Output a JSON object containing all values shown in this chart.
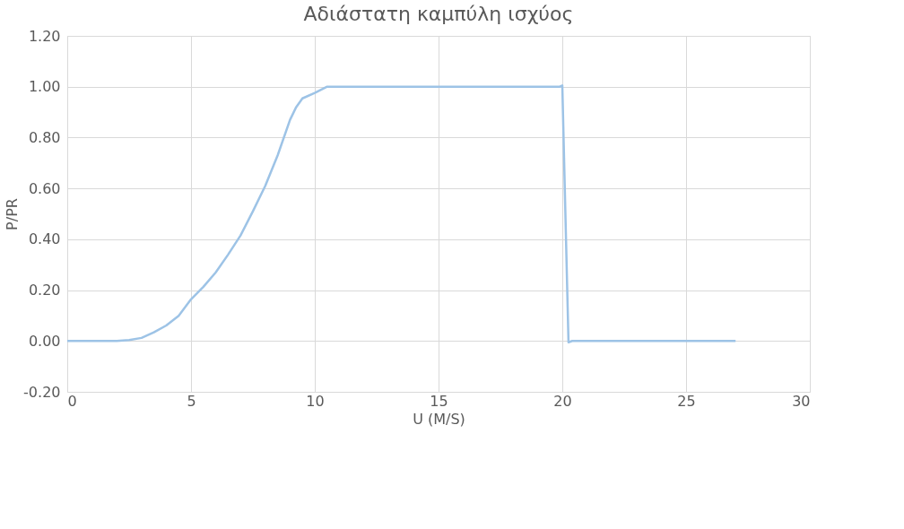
{
  "chart_data": {
    "type": "line",
    "title": "Αδιάστατη καμπύλη ισχύος",
    "xlabel": "U (M/S)",
    "ylabel": "P/PR",
    "x": [
      0,
      1,
      2,
      2.5,
      3,
      3.5,
      4,
      4.5,
      5,
      5.5,
      6,
      6.5,
      7,
      7.5,
      8,
      8.5,
      9,
      9.25,
      9.5,
      10,
      10.5,
      19.9,
      20,
      20.25,
      20.4,
      27
    ],
    "series": [
      {
        "color": "#9dc3e6",
        "values": [
          0,
          0,
          0,
          0.004,
          0.012,
          0.034,
          0.061,
          0.099,
          0.164,
          0.213,
          0.27,
          0.34,
          0.415,
          0.51,
          0.61,
          0.73,
          0.87,
          0.92,
          0.954,
          0.976,
          1.0,
          1.0,
          1.005,
          -0.005,
          0,
          0
        ]
      }
    ],
    "xlim": [
      0,
      30
    ],
    "xticks": [
      0,
      5,
      10,
      15,
      20,
      25,
      30
    ],
    "ylim": [
      -0.2,
      1.2
    ],
    "yticks": [
      {
        "value": -0.2,
        "label": "-0.20"
      },
      {
        "value": 0,
        "label": "0.00"
      },
      {
        "value": 0.2,
        "label": "0.20"
      },
      {
        "value": 0.4,
        "label": "0.40"
      },
      {
        "value": 0.6,
        "label": "0.60"
      },
      {
        "value": 0.8,
        "label": "0.80"
      },
      {
        "value": 1.0,
        "label": "1.00"
      },
      {
        "value": 1.2,
        "label": "1.20"
      }
    ],
    "grid": true,
    "legend": false,
    "marker": "none",
    "line_style": "solid"
  }
}
